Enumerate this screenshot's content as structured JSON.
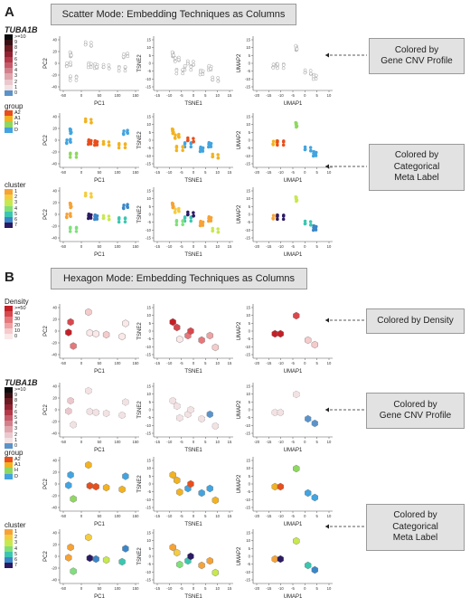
{
  "panelA": {
    "letter": "A",
    "title": "Scatter Mode: Embedding Techniques as Columns",
    "callouts": [
      {
        "lines": [
          "Colored by",
          "Gene CNV Profile"
        ]
      },
      {
        "lines": [
          "Colored by",
          "Categorical",
          "Meta Label"
        ]
      }
    ]
  },
  "panelB": {
    "letter": "B",
    "title": "Hexagon Mode: Embedding Techniques as Columns",
    "callouts": [
      {
        "lines": [
          "Colored by Density"
        ]
      },
      {
        "lines": [
          "Colored by",
          "Gene CNV Profile"
        ]
      },
      {
        "lines": [
          "Colored by",
          "Categorical",
          "Meta Label"
        ]
      }
    ]
  },
  "legends": {
    "gene": {
      "title": "TUBA1B",
      "labels": [
        ">=10",
        "9",
        "8",
        "7",
        "6",
        "5",
        "4",
        "3",
        "2",
        "1",
        "0"
      ]
    },
    "group": {
      "title": "group",
      "labels": [
        "A2",
        "A1",
        "H",
        "D"
      ]
    },
    "cluster": {
      "title": "cluster",
      "labels": [
        "1",
        "2",
        "3",
        "4",
        "5",
        "6",
        "7"
      ]
    },
    "density": {
      "title": "Density",
      "labels": [
        ">=50",
        "40",
        "30",
        "20",
        "10",
        "0"
      ]
    }
  },
  "axes": {
    "pca": {
      "xlabel": "PC1",
      "ylabel": "PC2",
      "xticks": [
        "-50",
        "0",
        "50",
        "100",
        "150"
      ],
      "yticks": [
        "-40",
        "-20",
        "0",
        "20",
        "40"
      ]
    },
    "tsne": {
      "xlabel": "TSNE1",
      "ylabel": "TSNE2",
      "xticks": [
        "-15",
        "-10",
        "-5",
        "0",
        "5",
        "10",
        "15"
      ],
      "yticks": [
        "-15",
        "-10",
        "-5",
        "0",
        "5",
        "10",
        "15"
      ]
    },
    "umap": {
      "xlabel": "UMAP1",
      "ylabel": "UMAP2",
      "xticks": [
        "-20",
        "-15",
        "-10",
        "-5",
        "0",
        "5",
        "10"
      ],
      "yticks": [
        "-15",
        "-10",
        "-5",
        "0",
        "5",
        "10",
        "15"
      ]
    }
  },
  "colors": {
    "gene": [
      "#0c0c0c",
      "#3a0f14",
      "#6b1a22",
      "#922232",
      "#b33848",
      "#c75a6a",
      "#d4808c",
      "#e0a6ae",
      "#ebc8cd",
      "#f3e2e4",
      "#5b93c9"
    ],
    "group": [
      "#e94e1b",
      "#f3b21f",
      "#8ed85f",
      "#42a4e0"
    ],
    "cluster": [
      "#f6a235",
      "#f5cc3f",
      "#c8e84f",
      "#7fe07a",
      "#3ac7b0",
      "#3a86c8",
      "#2b1a63"
    ],
    "density": [
      "#c41f26",
      "#d8484d",
      "#e6777b",
      "#efa2a4",
      "#f6cbcc",
      "#fbe8e8"
    ]
  }
}
